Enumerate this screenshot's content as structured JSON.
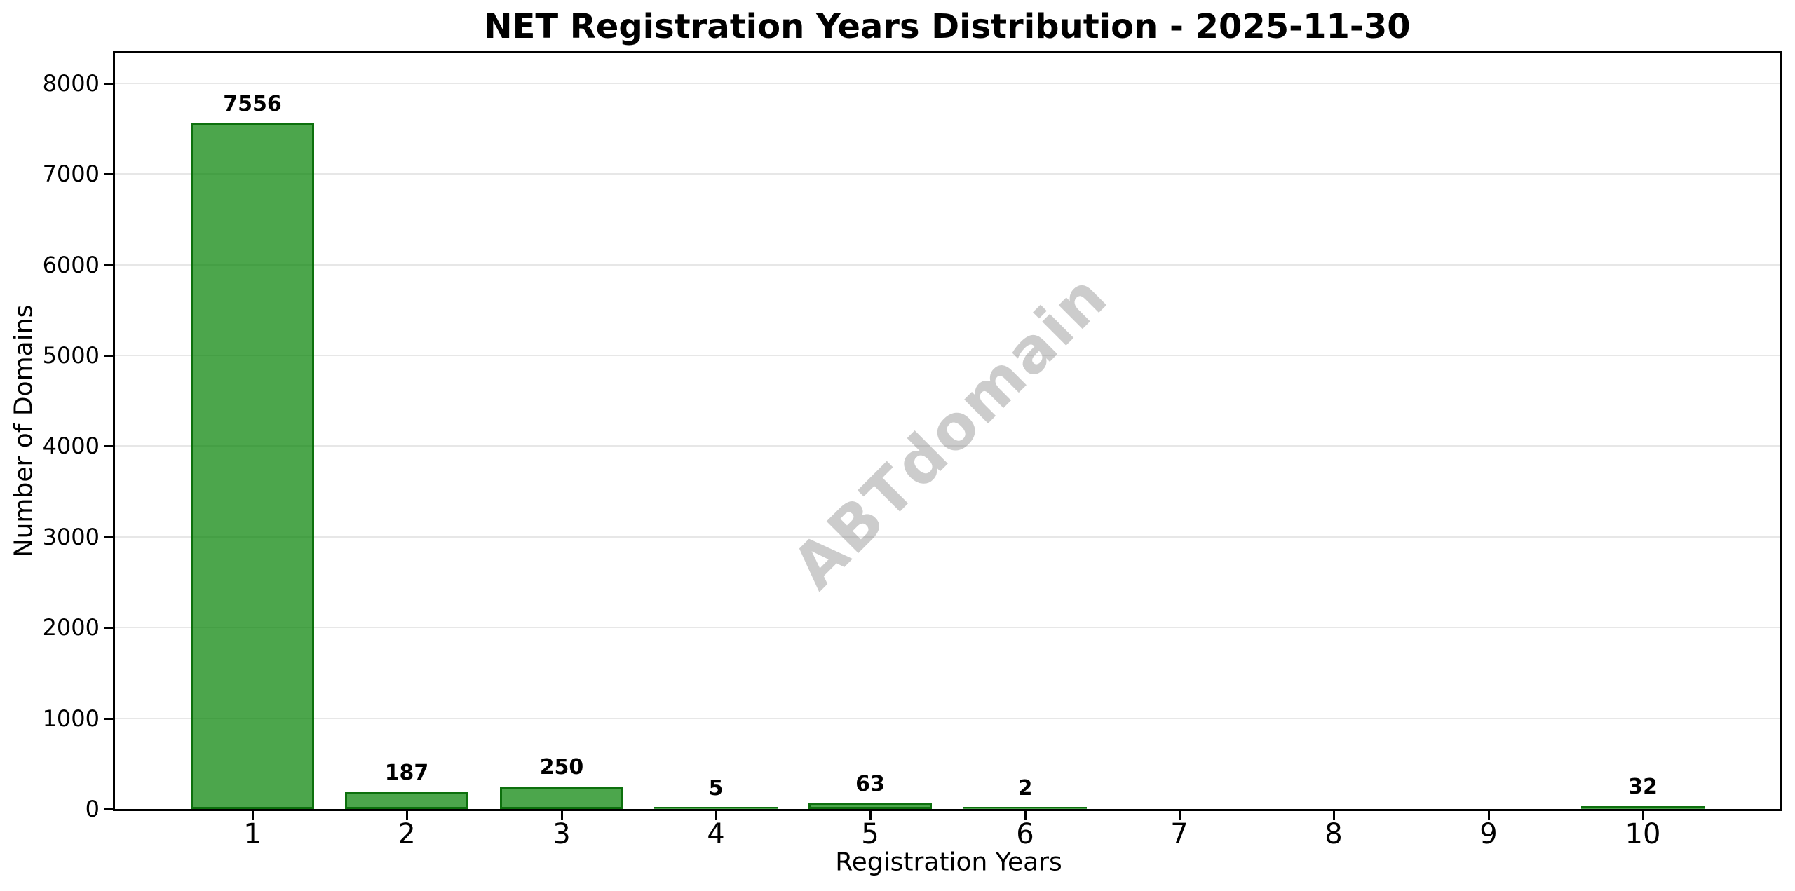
{
  "title": "NET Registration Years Distribution - 2025-11-30",
  "watermark": "ABTdomain",
  "chart_data": {
    "type": "bar",
    "title": "NET Registration Years Distribution - 2025-11-30",
    "categories": [
      "1",
      "2",
      "3",
      "4",
      "5",
      "6",
      "7",
      "8",
      "9",
      "10"
    ],
    "values": [
      7556,
      187,
      250,
      5,
      63,
      2,
      0,
      0,
      0,
      32
    ],
    "bar_labels": [
      "7556",
      "187",
      "250",
      "5",
      "63",
      "2",
      "",
      "",
      "",
      "32"
    ],
    "xlabel": "Registration Years",
    "ylabel": "Number of Domains",
    "yticks": [
      0,
      1000,
      2000,
      3000,
      4000,
      5000,
      6000,
      7000,
      8000
    ],
    "ylim": [
      0,
      8330
    ],
    "xlim": [
      0.11,
      10.89
    ],
    "bar_width_units": 0.8,
    "grid": true,
    "legend": "none",
    "watermark": "ABTdomain",
    "colors": {
      "bar_fill": "rgba(0,128,0,0.7)",
      "bar_edge": "rgba(0,100,0,0.82)",
      "grid": "#e7e7e7",
      "spine": "#000000",
      "text": "#000000",
      "watermark": "rgba(128,128,128,0.40)",
      "background": "#ffffff"
    }
  }
}
